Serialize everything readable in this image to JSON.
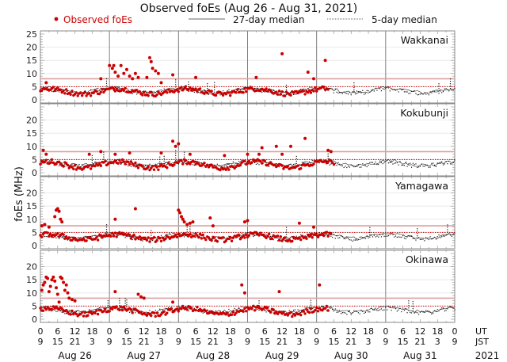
{
  "chart_data": {
    "type": "scatter",
    "title": "Observed foEs (Aug 26 - Aug 31, 2021)",
    "ylabel": "foEs (MHz)",
    "xlabel": "",
    "ylim": [
      0,
      25
    ],
    "yticks": [
      0,
      5,
      10,
      15,
      20,
      25
    ],
    "xlim_hours_ut": [
      0,
      144
    ],
    "legend": {
      "placement": "top",
      "entries": [
        {
          "label": "Observed foEs",
          "style": "red-dot",
          "color": "#cc0000"
        },
        {
          "label": "27-day median",
          "style": "solid-line",
          "color": "#000000"
        },
        {
          "label": "5-day median",
          "style": "dotted-line",
          "color": "#000000"
        }
      ]
    },
    "x_axis": {
      "ut_row_label": "UT",
      "jst_row_label": "JST",
      "ut_ticks": [
        "0",
        "6",
        "12",
        "18",
        "0",
        "6",
        "12",
        "18",
        "0",
        "6",
        "12",
        "18",
        "0",
        "6",
        "12",
        "18",
        "0",
        "6",
        "12",
        "18",
        "0",
        "6",
        "12",
        "18",
        "0"
      ],
      "jst_ticks": [
        "9",
        "15",
        "21",
        "3",
        "9",
        "15",
        "21",
        "3",
        "9",
        "15",
        "21",
        "3",
        "9",
        "15",
        "21",
        "3",
        "9",
        "15",
        "21",
        "3",
        "9",
        "15",
        "21",
        "3",
        "9"
      ],
      "day_labels": [
        "Aug 26",
        "Aug 27",
        "Aug 28",
        "Aug 29",
        "Aug 30",
        "Aug 31"
      ],
      "year_label": "2021"
    },
    "grid": true,
    "colors": {
      "observed": "#cc0000",
      "median27": "#000000",
      "median5": "#000000",
      "upper_ref": "#d9a0a0",
      "lower_ref": "#cc0000",
      "grid": "#e6e6e6",
      "day_divider": "#808080"
    },
    "panels": [
      {
        "station": "Wakkanai",
        "upper_ref_mhz": 8,
        "lower_ref_mhz": 5,
        "observed_end_hour": 100,
        "baseline_mhz": 3.2,
        "baseline_amp": 1.0,
        "spikes": [
          {
            "hour": 2,
            "mhz": 6.5
          },
          {
            "hour": 21,
            "mhz": 8.0
          },
          {
            "hour": 24,
            "mhz": 13
          },
          {
            "hour": 25,
            "mhz": 12
          },
          {
            "hour": 25.5,
            "mhz": 13
          },
          {
            "hour": 26,
            "mhz": 10.5
          },
          {
            "hour": 27,
            "mhz": 9
          },
          {
            "hour": 28,
            "mhz": 13
          },
          {
            "hour": 29,
            "mhz": 10
          },
          {
            "hour": 30,
            "mhz": 11.5
          },
          {
            "hour": 31,
            "mhz": 9
          },
          {
            "hour": 32,
            "mhz": 8
          },
          {
            "hour": 33,
            "mhz": 10
          },
          {
            "hour": 34,
            "mhz": 8.5
          },
          {
            "hour": 37,
            "mhz": 8.5
          },
          {
            "hour": 38,
            "mhz": 16
          },
          {
            "hour": 38.5,
            "mhz": 14.5
          },
          {
            "hour": 39,
            "mhz": 12
          },
          {
            "hour": 40,
            "mhz": 11
          },
          {
            "hour": 41,
            "mhz": 10
          },
          {
            "hour": 42,
            "mhz": 6.5
          },
          {
            "hour": 46,
            "mhz": 9.5
          },
          {
            "hour": 54,
            "mhz": 8.5
          },
          {
            "hour": 75,
            "mhz": 8.5
          },
          {
            "hour": 84,
            "mhz": 17.5
          },
          {
            "hour": 93,
            "mhz": 10.5
          },
          {
            "hour": 99,
            "mhz": 15
          },
          {
            "hour": 95,
            "mhz": 8
          }
        ]
      },
      {
        "station": "Kokubunji",
        "upper_ref_mhz": 8,
        "lower_ref_mhz": 5,
        "observed_end_hour": 102,
        "baseline_mhz": 3.0,
        "baseline_amp": 1.2,
        "spikes": [
          {
            "hour": 1,
            "mhz": 8.5
          },
          {
            "hour": 2,
            "mhz": 7
          },
          {
            "hour": 17,
            "mhz": 7
          },
          {
            "hour": 21,
            "mhz": 8
          },
          {
            "hour": 26,
            "mhz": 7
          },
          {
            "hour": 31,
            "mhz": 7.5
          },
          {
            "hour": 42,
            "mhz": 7.5
          },
          {
            "hour": 46,
            "mhz": 12
          },
          {
            "hour": 47,
            "mhz": 10
          },
          {
            "hour": 48,
            "mhz": 11
          },
          {
            "hour": 52,
            "mhz": 7
          },
          {
            "hour": 64,
            "mhz": 6.5
          },
          {
            "hour": 72,
            "mhz": 7
          },
          {
            "hour": 76,
            "mhz": 7
          },
          {
            "hour": 77,
            "mhz": 9.5
          },
          {
            "hour": 82,
            "mhz": 10
          },
          {
            "hour": 84,
            "mhz": 7
          },
          {
            "hour": 87,
            "mhz": 10
          },
          {
            "hour": 92,
            "mhz": 13
          },
          {
            "hour": 100,
            "mhz": 8.5
          },
          {
            "hour": 101,
            "mhz": 8
          }
        ]
      },
      {
        "station": "Yamagawa",
        "upper_ref_mhz": 7.5,
        "lower_ref_mhz": 5,
        "observed_end_hour": 101,
        "baseline_mhz": 3.2,
        "baseline_amp": 1.0,
        "spikes": [
          {
            "hour": 0.5,
            "mhz": 7.5
          },
          {
            "hour": 1.5,
            "mhz": 8
          },
          {
            "hour": 3,
            "mhz": 7
          },
          {
            "hour": 5,
            "mhz": 11
          },
          {
            "hour": 5.5,
            "mhz": 13.5
          },
          {
            "hour": 6,
            "mhz": 14
          },
          {
            "hour": 6.5,
            "mhz": 13
          },
          {
            "hour": 7,
            "mhz": 10
          },
          {
            "hour": 7.5,
            "mhz": 9
          },
          {
            "hour": 26,
            "mhz": 10
          },
          {
            "hour": 33,
            "mhz": 14
          },
          {
            "hour": 48,
            "mhz": 13.5
          },
          {
            "hour": 48.5,
            "mhz": 12.5
          },
          {
            "hour": 49,
            "mhz": 11
          },
          {
            "hour": 49.5,
            "mhz": 10
          },
          {
            "hour": 50,
            "mhz": 9
          },
          {
            "hour": 51,
            "mhz": 8
          },
          {
            "hour": 52,
            "mhz": 8.5
          },
          {
            "hour": 53,
            "mhz": 9
          },
          {
            "hour": 59,
            "mhz": 10.5
          },
          {
            "hour": 60,
            "mhz": 7.5
          },
          {
            "hour": 71,
            "mhz": 9
          },
          {
            "hour": 72,
            "mhz": 9.5
          },
          {
            "hour": 90,
            "mhz": 8.5
          },
          {
            "hour": 95,
            "mhz": 7
          }
        ]
      },
      {
        "station": "Okinawa",
        "upper_ref_mhz": 8,
        "lower_ref_mhz": 5,
        "observed_end_hour": 100,
        "baseline_mhz": 3.0,
        "baseline_amp": 1.2,
        "spikes": [
          {
            "hour": 0.5,
            "mhz": 11
          },
          {
            "hour": 1,
            "mhz": 13
          },
          {
            "hour": 1.5,
            "mhz": 14
          },
          {
            "hour": 2,
            "mhz": 16
          },
          {
            "hour": 2.5,
            "mhz": 15.5
          },
          {
            "hour": 3,
            "mhz": 10.5
          },
          {
            "hour": 3.5,
            "mhz": 12.5
          },
          {
            "hour": 4,
            "mhz": 15
          },
          {
            "hour": 4.5,
            "mhz": 16
          },
          {
            "hour": 5,
            "mhz": 14.5
          },
          {
            "hour": 5.5,
            "mhz": 12
          },
          {
            "hour": 6,
            "mhz": 9.5
          },
          {
            "hour": 6.5,
            "mhz": 6.5
          },
          {
            "hour": 7,
            "mhz": 16
          },
          {
            "hour": 7.5,
            "mhz": 15.5
          },
          {
            "hour": 8,
            "mhz": 14
          },
          {
            "hour": 8.5,
            "mhz": 11
          },
          {
            "hour": 9,
            "mhz": 13
          },
          {
            "hour": 9.5,
            "mhz": 10
          },
          {
            "hour": 10,
            "mhz": 8
          },
          {
            "hour": 11,
            "mhz": 7.5
          },
          {
            "hour": 12,
            "mhz": 7
          },
          {
            "hour": 26,
            "mhz": 10.5
          },
          {
            "hour": 34,
            "mhz": 9.5
          },
          {
            "hour": 35,
            "mhz": 8.5
          },
          {
            "hour": 36,
            "mhz": 8
          },
          {
            "hour": 46,
            "mhz": 6.5
          },
          {
            "hour": 70,
            "mhz": 13
          },
          {
            "hour": 71,
            "mhz": 10
          },
          {
            "hour": 83,
            "mhz": 10.5
          },
          {
            "hour": 97,
            "mhz": 13
          }
        ]
      }
    ]
  }
}
